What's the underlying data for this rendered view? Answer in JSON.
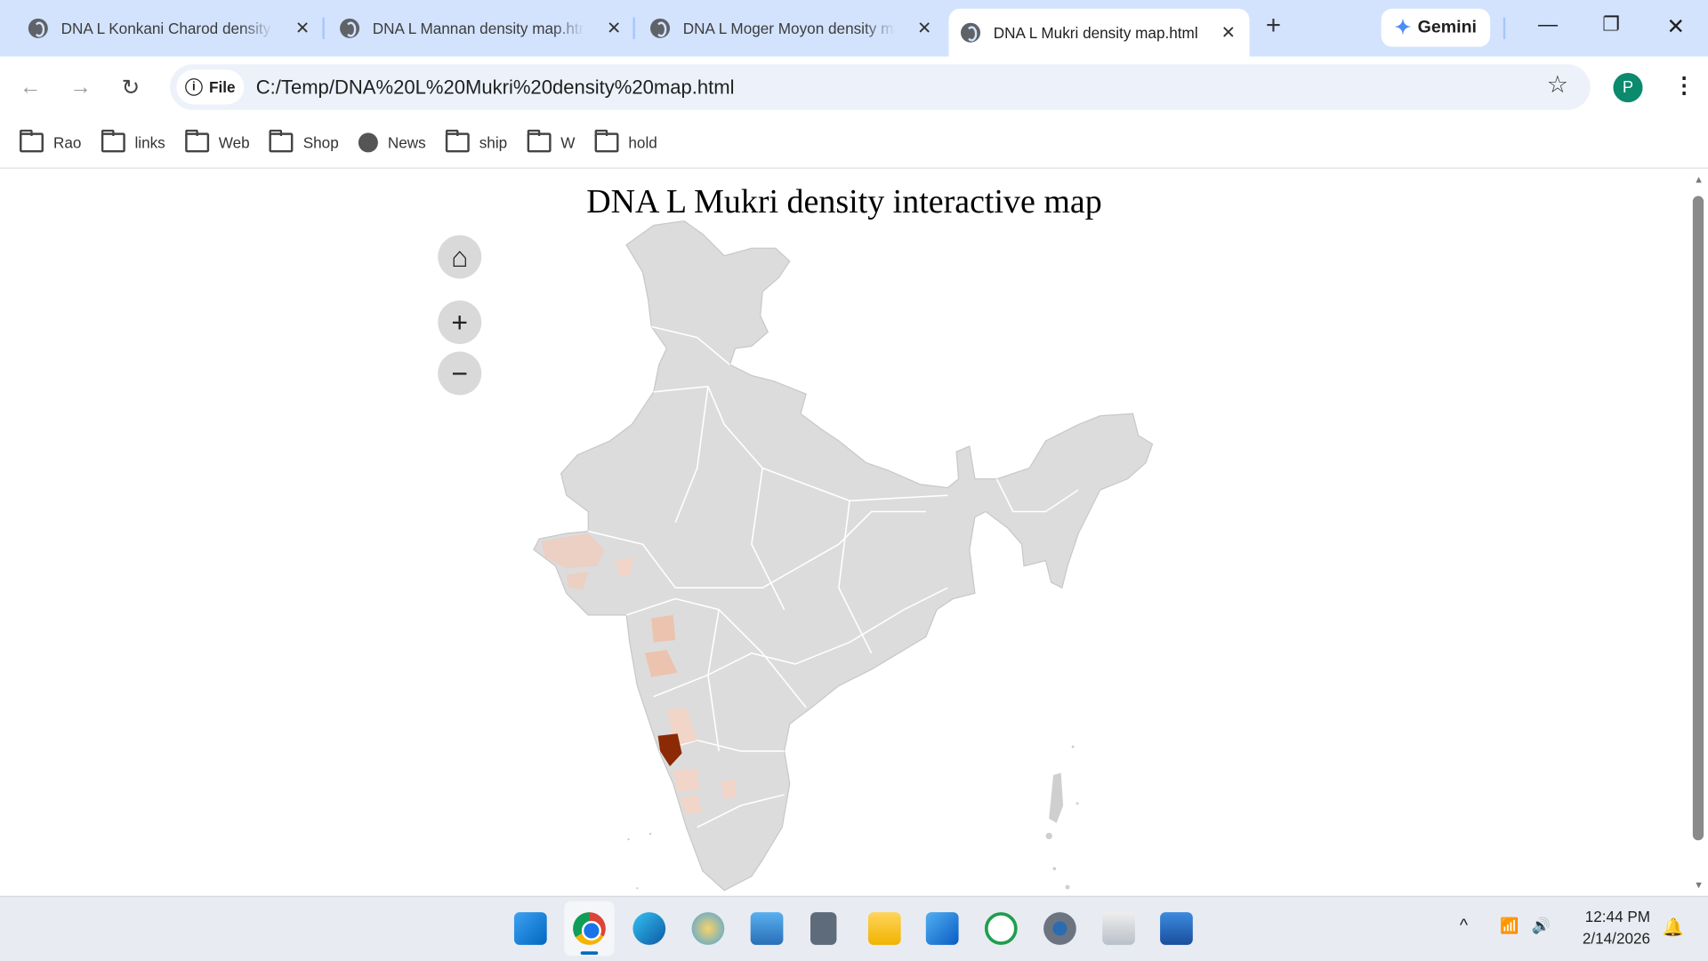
{
  "browser": {
    "tabs": [
      {
        "title": "DNA L Konkani Charod density map.html",
        "active": false
      },
      {
        "title": "DNA L Mannan density map.html",
        "active": false
      },
      {
        "title": "DNA L Moger Moyon density map.html",
        "active": false
      },
      {
        "title": "DNA L Mukri density map.html",
        "active": true
      }
    ],
    "new_tab": "+",
    "gemini_label": "Gemini",
    "window_controls": {
      "minimize": "—",
      "restore": "❐",
      "close": "✕"
    },
    "address": {
      "security_chip": "File",
      "url": "C:/Temp/DNA%20L%20Mukri%20density%20map.html"
    },
    "profile_initial": "P",
    "bookmarks": [
      {
        "label": "Rao",
        "icon": "folder-icon"
      },
      {
        "label": "links",
        "icon": "folder-icon"
      },
      {
        "label": "Web",
        "icon": "folder-icon"
      },
      {
        "label": "Shop",
        "icon": "folder-icon"
      },
      {
        "label": "News",
        "icon": "globe-icon"
      },
      {
        "label": "ship",
        "icon": "folder-icon"
      },
      {
        "label": "W",
        "icon": "folder-icon"
      },
      {
        "label": "hold",
        "icon": "folder-icon"
      }
    ]
  },
  "page": {
    "title": "DNA L Mukri density interactive map",
    "controls": {
      "home": "⌂",
      "zoom_in": "+",
      "zoom_out": "−"
    },
    "colors": {
      "base": "#dcdcdc",
      "low": "#f0d5c8",
      "mid": "#ebc3ae",
      "high": "#8b2a05",
      "border": "#ffffff"
    }
  },
  "taskbar": {
    "apps": [
      "start",
      "chrome",
      "edge",
      "paint",
      "remote-desktop",
      "calculator",
      "file-explorer",
      "outlook",
      "whatsapp",
      "settings",
      "scanner",
      "notepad"
    ],
    "time": "12:44 PM",
    "date": "2/14/2026"
  }
}
